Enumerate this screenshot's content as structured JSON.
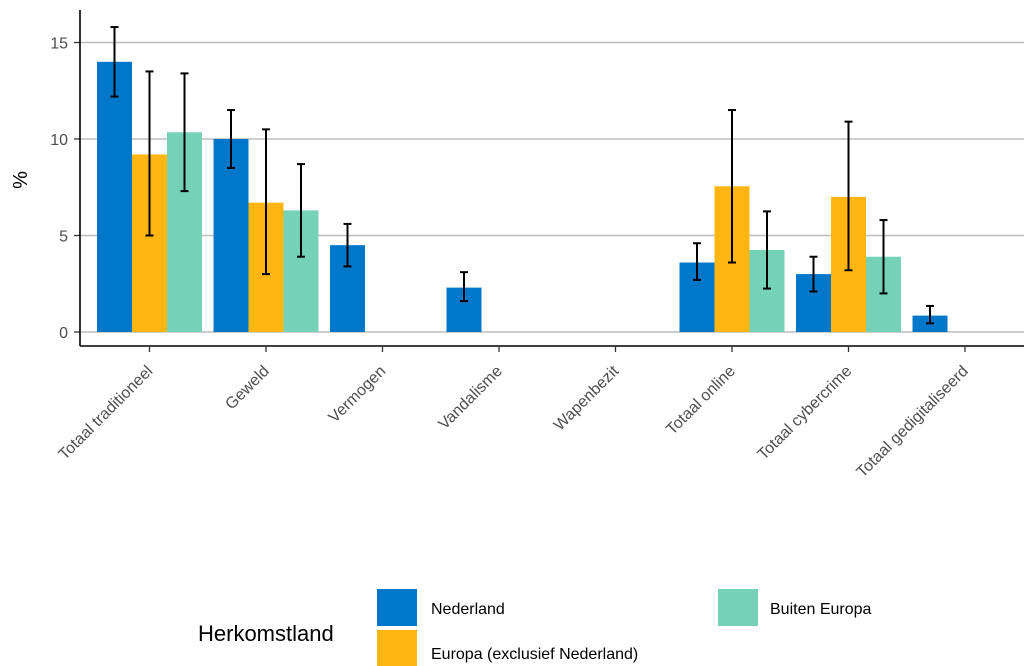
{
  "chart_data": {
    "type": "bar",
    "ylabel": "%",
    "ylim": [
      0,
      16.2
    ],
    "yticks": [
      0,
      5,
      10,
      15
    ],
    "grid": "horizontal major",
    "categories": [
      "Totaal traditioneel",
      "Geweld",
      "Vermogen",
      "Vandalisme",
      "Wapenbezit",
      "Totaal online",
      "Totaal cybercrime",
      "Totaal gedigitaliseerd"
    ],
    "series": [
      {
        "name": "Nederland",
        "color": "#0077C8",
        "values": [
          14.0,
          10.0,
          4.5,
          2.3,
          null,
          3.6,
          3.0,
          0.85
        ],
        "err_low": [
          12.2,
          8.5,
          3.4,
          1.6,
          null,
          2.7,
          2.1,
          0.45
        ],
        "err_high": [
          15.8,
          11.5,
          5.6,
          3.1,
          null,
          4.6,
          3.9,
          1.35
        ]
      },
      {
        "name": "Europa (exclusief Nederland)",
        "color": "#FFB612",
        "values": [
          9.2,
          6.7,
          null,
          null,
          null,
          7.55,
          7.0,
          null
        ],
        "err_low": [
          5.0,
          3.0,
          null,
          null,
          null,
          3.6,
          3.2,
          null
        ],
        "err_high": [
          13.5,
          10.5,
          null,
          null,
          null,
          11.5,
          10.9,
          null
        ]
      },
      {
        "name": "Buiten Europa",
        "color": "#76D2B6",
        "values": [
          10.35,
          6.3,
          null,
          null,
          null,
          4.25,
          3.9,
          null
        ],
        "err_low": [
          7.3,
          3.9,
          null,
          null,
          null,
          2.25,
          2.0,
          null
        ],
        "err_high": [
          13.4,
          8.7,
          null,
          null,
          null,
          6.25,
          5.8,
          null
        ]
      }
    ],
    "legend": {
      "title": "Herkomstland",
      "position": "bottom",
      "entries": [
        "Nederland",
        "Europa (exclusief Nederland)",
        "Buiten Europa"
      ]
    }
  }
}
